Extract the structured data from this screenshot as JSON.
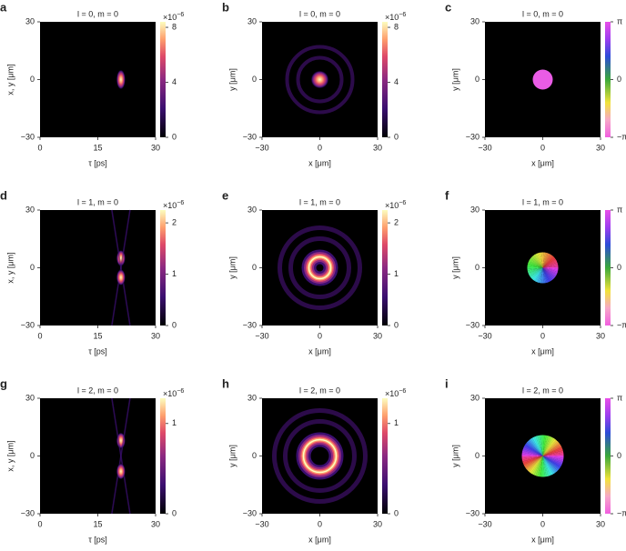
{
  "panels": [
    {
      "letter": "a",
      "title": "l = 0, m = 0",
      "x_label": "τ [ps]",
      "y_label": "x, y [μm]",
      "xlim": [
        0,
        30
      ],
      "ylim": [
        -30,
        30
      ],
      "xticks": [
        0,
        15,
        30
      ],
      "yticks": [
        {
          "value": -30,
          "label": "−30"
        },
        0,
        30
      ],
      "colorbar": {
        "lim": [
          0,
          8.4
        ],
        "ticks": [
          0,
          4,
          8
        ],
        "exponent_base": "×10",
        "exponent": "−6"
      }
    },
    {
      "letter": "b",
      "title": "l = 0, m = 0",
      "x_label": "x [μm]",
      "y_label": "y [μm]",
      "xlim": [
        -30,
        30
      ],
      "ylim": [
        -30,
        30
      ],
      "xticks": [
        {
          "value": -30,
          "label": "−30"
        },
        0,
        30
      ],
      "yticks": [
        {
          "value": -30,
          "label": "−30"
        },
        0,
        30
      ],
      "colorbar": {
        "lim": [
          0,
          8.4
        ],
        "ticks": [
          0,
          4,
          8
        ],
        "exponent_base": "×10",
        "exponent": "−6"
      }
    },
    {
      "letter": "c",
      "title": "l = 0, m = 0",
      "x_label": "x [μm]",
      "y_label": "y [μm]",
      "xlim": [
        -30,
        30
      ],
      "ylim": [
        -30,
        30
      ],
      "xticks": [
        {
          "value": -30,
          "label": "−30"
        },
        0,
        30
      ],
      "yticks": [
        {
          "value": -30,
          "label": "−30"
        },
        0,
        30
      ],
      "colorbar": {
        "lim": [
          -3.14159,
          3.14159
        ],
        "ticks": [
          {
            "value": -3.14159,
            "label": "−π"
          },
          0,
          {
            "value": 3.14159,
            "label": "π"
          }
        ]
      }
    },
    {
      "letter": "d",
      "title": "l = 1, m = 0",
      "x_label": "τ [ps]",
      "y_label": "x, y [μm]",
      "xlim": [
        0,
        30
      ],
      "ylim": [
        -30,
        30
      ],
      "xticks": [
        0,
        15,
        30
      ],
      "yticks": [
        {
          "value": -30,
          "label": "−30"
        },
        0,
        30
      ],
      "colorbar": {
        "lim": [
          0,
          2.25
        ],
        "ticks": [
          0,
          1,
          2
        ],
        "exponent_base": "×10",
        "exponent": "−6"
      }
    },
    {
      "letter": "e",
      "title": "l = 1, m = 0",
      "x_label": "x [μm]",
      "y_label": "y [μm]",
      "xlim": [
        -30,
        30
      ],
      "ylim": [
        -30,
        30
      ],
      "xticks": [
        {
          "value": -30,
          "label": "−30"
        },
        0,
        30
      ],
      "yticks": [
        {
          "value": -30,
          "label": "−30"
        },
        0,
        30
      ],
      "colorbar": {
        "lim": [
          0,
          2.25
        ],
        "ticks": [
          0,
          1,
          2
        ],
        "exponent_base": "×10",
        "exponent": "−6"
      }
    },
    {
      "letter": "f",
      "title": "l = 1, m = 0",
      "x_label": "x [μm]",
      "y_label": "y [μm]",
      "xlim": [
        -30,
        30
      ],
      "ylim": [
        -30,
        30
      ],
      "xticks": [
        {
          "value": -30,
          "label": "−30"
        },
        0,
        30
      ],
      "yticks": [
        {
          "value": -30,
          "label": "−30"
        },
        0,
        30
      ],
      "colorbar": {
        "lim": [
          -3.14159,
          3.14159
        ],
        "ticks": [
          {
            "value": -3.14159,
            "label": "−π"
          },
          0,
          {
            "value": 3.14159,
            "label": "π"
          }
        ]
      }
    },
    {
      "letter": "g",
      "title": "l = 2, m = 0",
      "x_label": "τ [ps]",
      "y_label": "x, y [μm]",
      "xlim": [
        0,
        30
      ],
      "ylim": [
        -30,
        30
      ],
      "xticks": [
        0,
        15,
        30
      ],
      "yticks": [
        {
          "value": -30,
          "label": "−30"
        },
        0,
        30
      ],
      "colorbar": {
        "lim": [
          0,
          1.28
        ],
        "ticks": [
          0,
          1
        ],
        "exponent_base": "×10",
        "exponent": "−6"
      }
    },
    {
      "letter": "h",
      "title": "l = 2, m = 0",
      "x_label": "x [μm]",
      "y_label": "y [μm]",
      "xlim": [
        -30,
        30
      ],
      "ylim": [
        -30,
        30
      ],
      "xticks": [
        {
          "value": -30,
          "label": "−30"
        },
        0,
        30
      ],
      "yticks": [
        {
          "value": -30,
          "label": "−30"
        },
        0,
        30
      ],
      "colorbar": {
        "lim": [
          0,
          1.28
        ],
        "ticks": [
          0,
          1
        ],
        "exponent_base": "×10",
        "exponent": "−6"
      }
    },
    {
      "letter": "i",
      "title": "l = 2, m = 0",
      "x_label": "x [μm]",
      "y_label": "y [μm]",
      "xlim": [
        -30,
        30
      ],
      "ylim": [
        -30,
        30
      ],
      "xticks": [
        {
          "value": -30,
          "label": "−30"
        },
        0,
        30
      ],
      "yticks": [
        {
          "value": -30,
          "label": "−30"
        },
        0,
        30
      ],
      "colorbar": {
        "lim": [
          -3.14159,
          3.14159
        ],
        "ticks": [
          {
            "value": -3.14159,
            "label": "−π"
          },
          0,
          {
            "value": 3.14159,
            "label": "π"
          }
        ]
      }
    }
  ]
}
